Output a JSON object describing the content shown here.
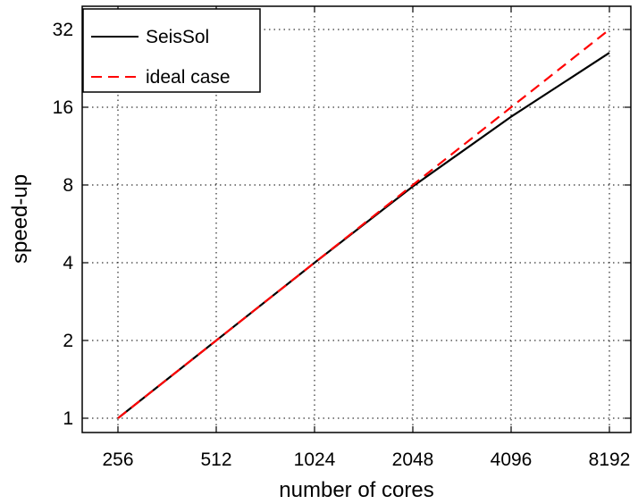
{
  "chart_data": {
    "type": "line",
    "title": "",
    "xlabel": "number of cores",
    "ylabel": "speed-up",
    "x_scale": "log2",
    "y_scale": "log2",
    "xticks": [
      "256",
      "512",
      "1024",
      "2048",
      "4096",
      "8192"
    ],
    "yticks": [
      "1",
      "2",
      "4",
      "8",
      "16",
      "32"
    ],
    "xlim": [
      256,
      8192
    ],
    "ylim": [
      1,
      32
    ],
    "grid": true,
    "legend_position": "top-left",
    "series": [
      {
        "name": "SeisSol",
        "color": "#000000",
        "style": "solid",
        "x": [
          256,
          512,
          1024,
          2048,
          4096,
          8192
        ],
        "y": [
          1,
          2,
          4,
          7.9,
          14.7,
          26
        ]
      },
      {
        "name": "ideal case",
        "color": "#ff0000",
        "style": "dashed",
        "x": [
          256,
          512,
          1024,
          2048,
          4096,
          8192
        ],
        "y": [
          1,
          2,
          4,
          8,
          16,
          32
        ]
      }
    ]
  }
}
